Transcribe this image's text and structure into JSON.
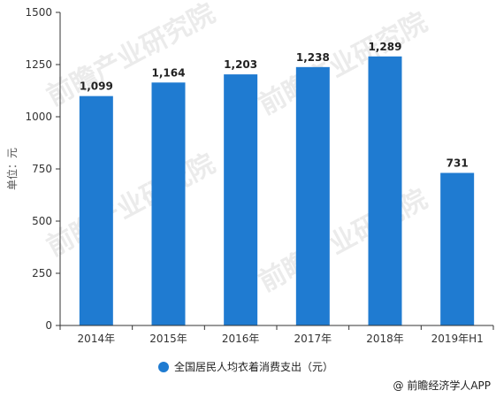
{
  "chart_data": {
    "type": "bar",
    "categories": [
      "2014年",
      "2015年",
      "2016年",
      "2017年",
      "2018年",
      "2019年H1"
    ],
    "series": [
      {
        "name": "全国居民人均衣着消费支出（元）",
        "values": [
          1099,
          1164,
          1203,
          1238,
          1289,
          731
        ],
        "data_labels": [
          "1,099",
          "1,164",
          "1,203",
          "1,238",
          "1,289",
          "731"
        ]
      }
    ],
    "ylabel": "单位：元",
    "ylim": [
      0,
      1500
    ],
    "yticks": [
      0,
      250,
      500,
      750,
      1000,
      1250,
      1500
    ],
    "grid": false,
    "legend_position": "bottom",
    "colors": {
      "bar": "#1f7bd1",
      "axis": "#333333"
    }
  },
  "watermark": "前瞻产业研究院",
  "source": "@ 前瞻经济学人APP"
}
